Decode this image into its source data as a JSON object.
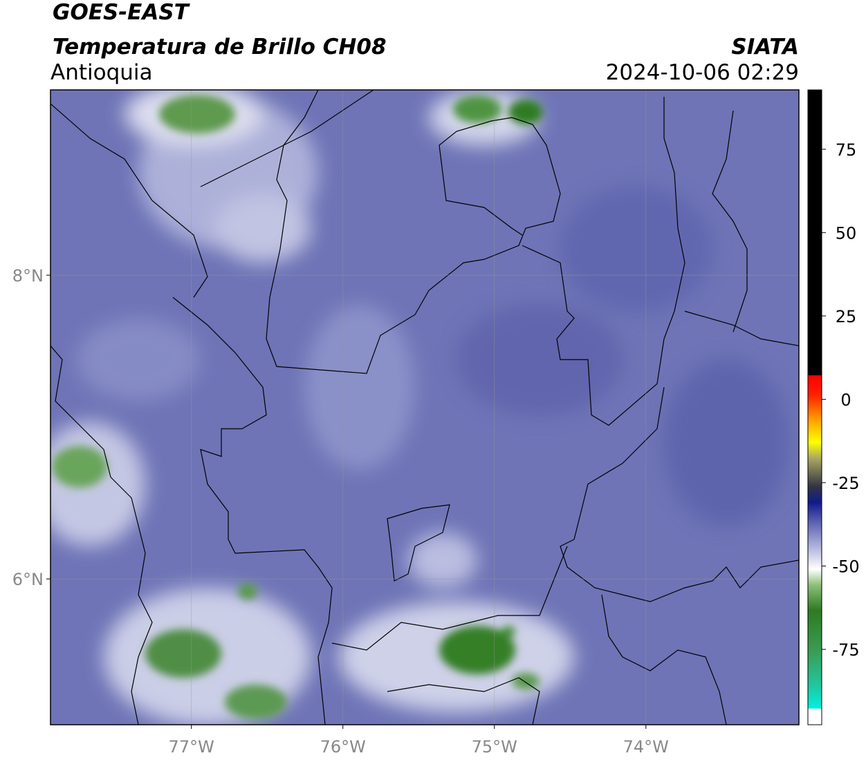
{
  "header": {
    "title": "GOES-EAST",
    "subtitle": "Temperatura de Brillo CH08",
    "source": "SIATA",
    "region": "Antioquia",
    "timestamp": "2024-10-06 02:29"
  },
  "map": {
    "xlim": [
      -77.93,
      -72.99
    ],
    "ylim": [
      5.04,
      9.22
    ],
    "xticks": [
      {
        "value": -77,
        "label": "77°W"
      },
      {
        "value": -76,
        "label": "76°W"
      },
      {
        "value": -75,
        "label": "75°W"
      },
      {
        "value": -74,
        "label": "74°W"
      }
    ],
    "yticks": [
      {
        "value": 8,
        "label": "8°N"
      },
      {
        "value": 6,
        "label": "6°N"
      }
    ]
  },
  "colorbar": {
    "lim": [
      -97.6,
      92.8
    ],
    "ticks": [
      75,
      50,
      25,
      0,
      -25,
      -50,
      -75
    ]
  }
}
